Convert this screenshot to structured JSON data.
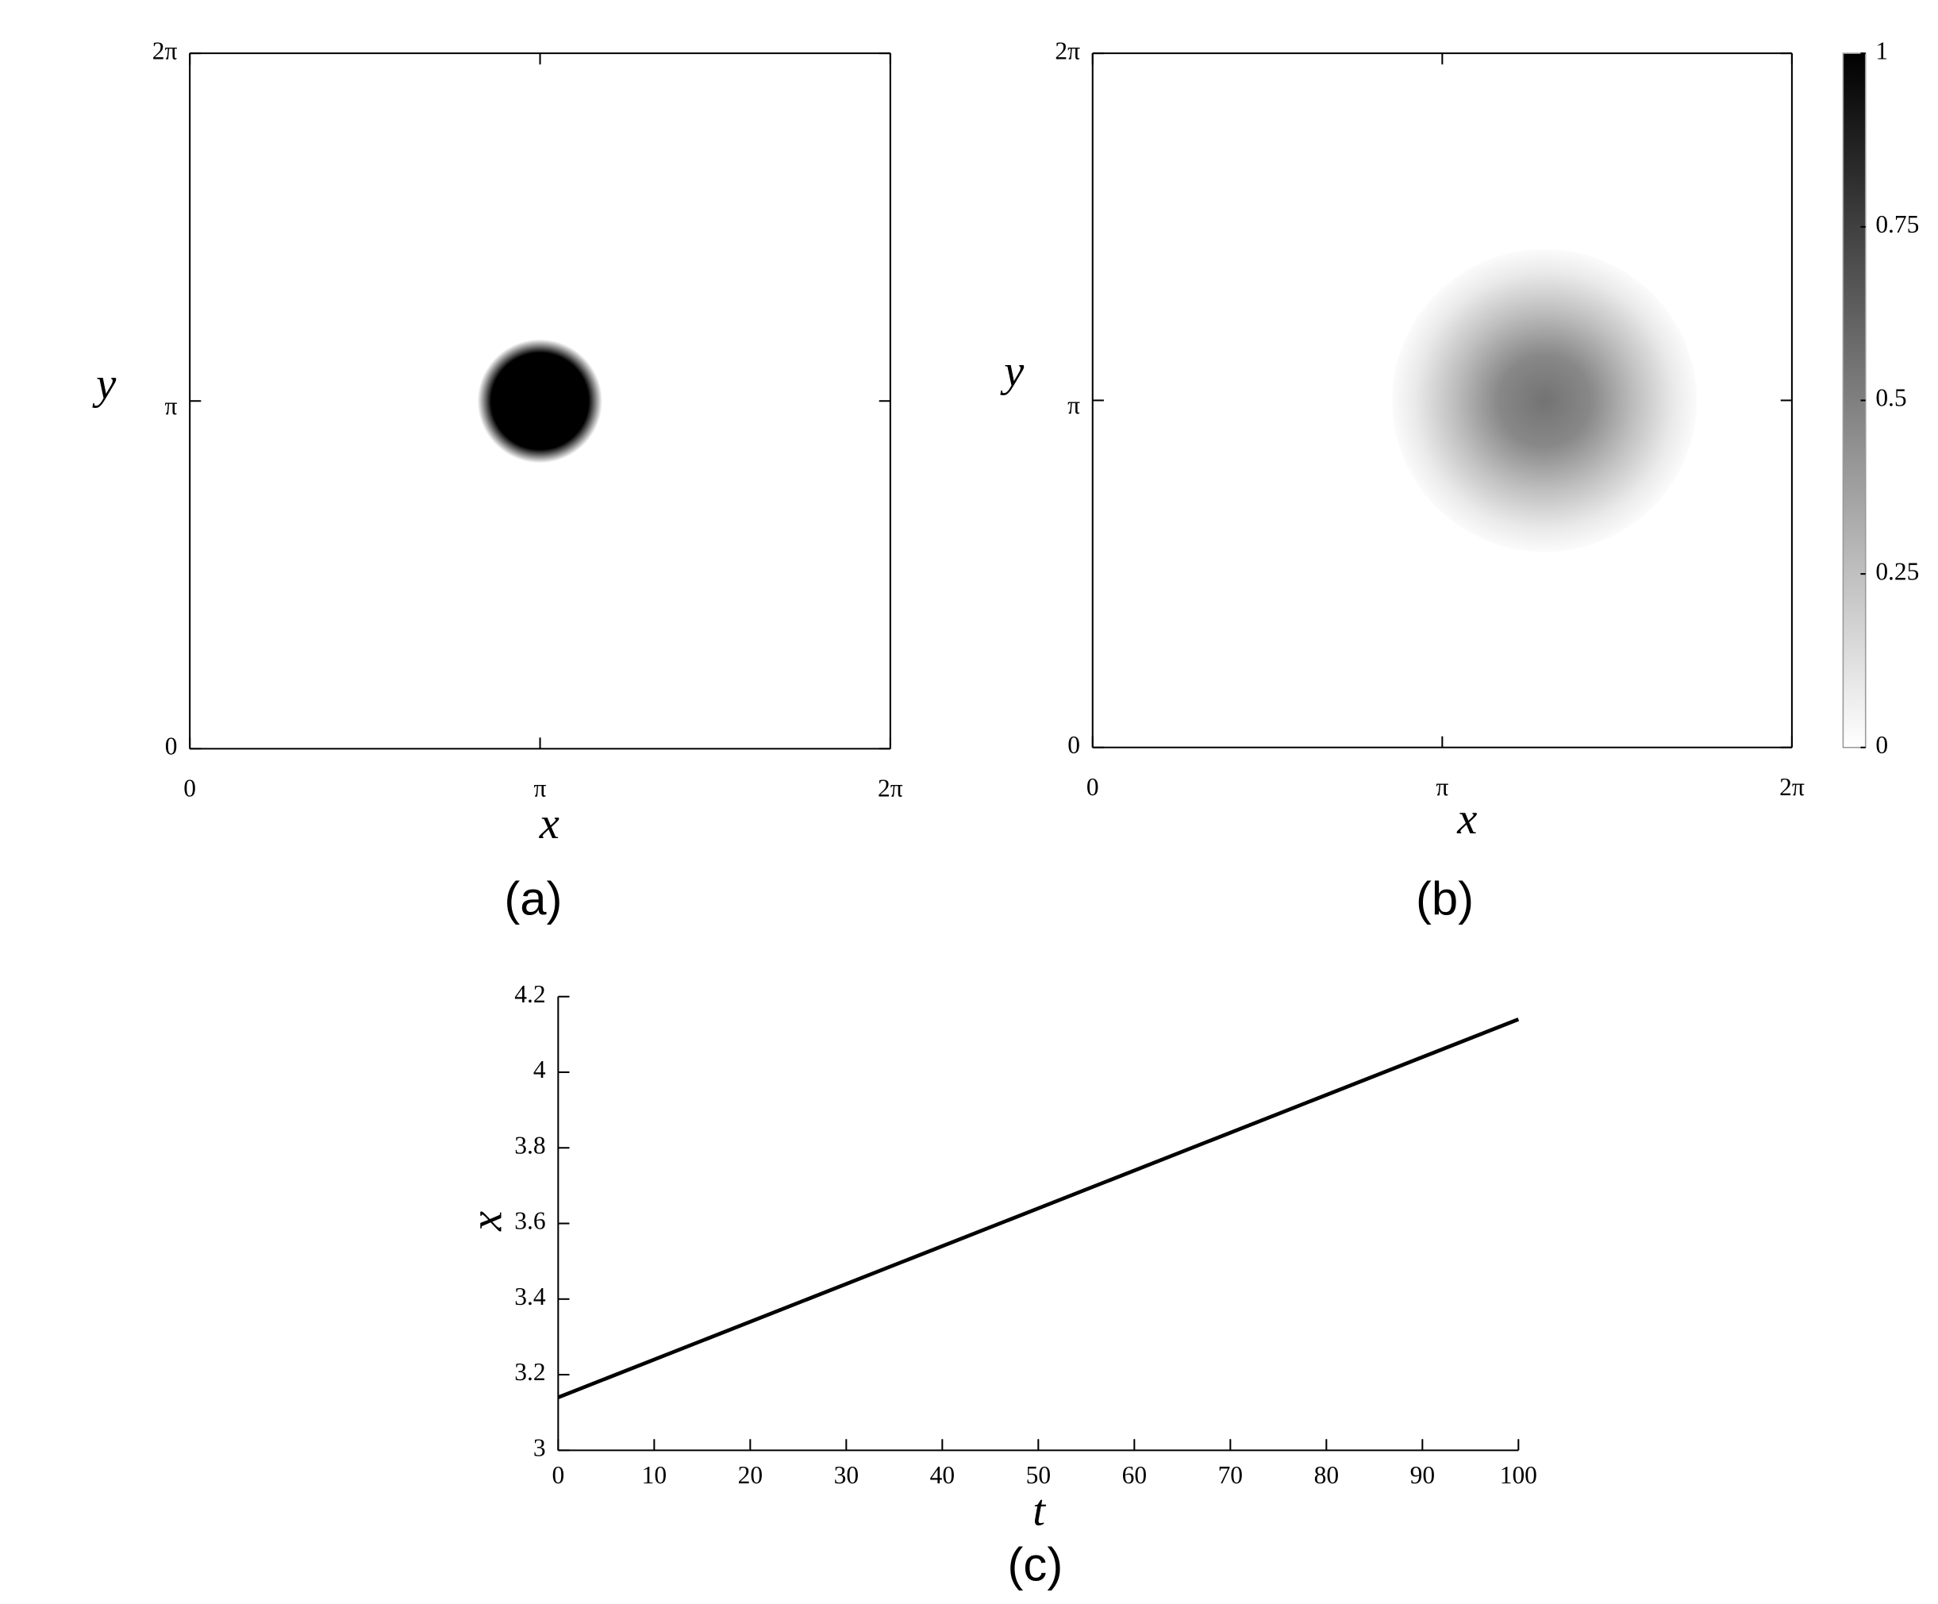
{
  "chart_data": [
    {
      "type": "field",
      "caption": "(a)",
      "xlabel": "x",
      "ylabel": "y",
      "xlim": [
        0,
        6.28319
      ],
      "ylim": [
        0,
        6.28319
      ],
      "xticks": [
        0,
        {
          "value": 3.14159,
          "label": "π"
        },
        {
          "value": 6.28319,
          "label": "2π"
        }
      ],
      "yticks": [
        0,
        {
          "value": 3.14159,
          "label": "π"
        },
        {
          "value": 6.28319,
          "label": "2π"
        }
      ],
      "center": [
        3.14,
        3.14
      ],
      "radius": 0.56,
      "peak": 1,
      "edge": "sharp",
      "color": "#000000"
    },
    {
      "type": "field",
      "caption": "(b)",
      "xlabel": "x",
      "ylabel": "y",
      "xlim": [
        0,
        6.28319
      ],
      "ylim": [
        0,
        6.28319
      ],
      "xticks": [
        0,
        {
          "value": 3.14159,
          "label": "π"
        },
        {
          "value": 6.28319,
          "label": "2π"
        }
      ],
      "yticks": [
        0,
        {
          "value": 3.14159,
          "label": "π"
        },
        {
          "value": 6.28319,
          "label": "2π"
        }
      ],
      "center": [
        4.06,
        3.14
      ],
      "radius": 1.37,
      "peak": 0.55,
      "edge": "soft",
      "color": "#000000",
      "colorbar": {
        "lim": [
          0,
          1
        ],
        "ticks": [
          0,
          0.25,
          0.5,
          0.75,
          1
        ]
      }
    },
    {
      "type": "line",
      "caption": "(c)",
      "xlabel": "t",
      "ylabel": "x",
      "x": [
        0,
        100
      ],
      "values": [
        3.14,
        4.14
      ],
      "color": "#000000",
      "xlim": [
        0,
        100
      ],
      "ylim": [
        3,
        4.2
      ],
      "xticks": [
        0,
        10,
        20,
        30,
        40,
        50,
        60,
        70,
        80,
        90,
        100
      ],
      "yticks": [
        3,
        3.2,
        3.4,
        3.6,
        3.8,
        4,
        4.2
      ]
    }
  ]
}
